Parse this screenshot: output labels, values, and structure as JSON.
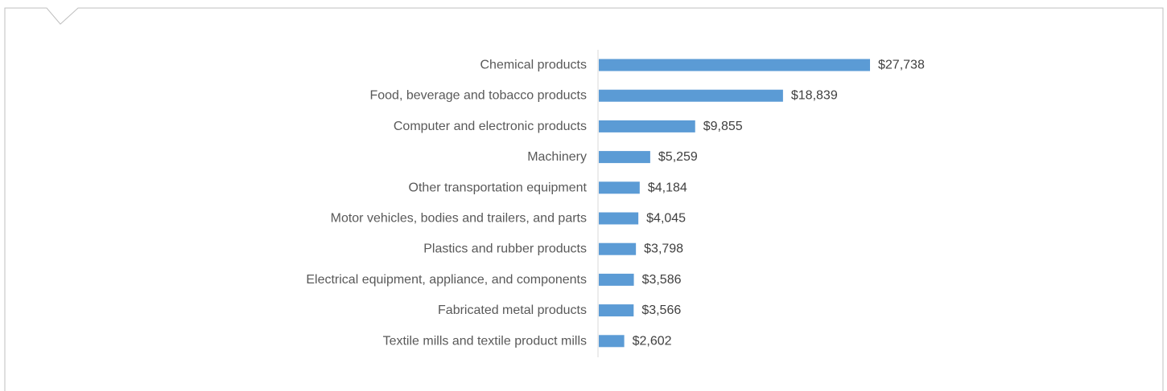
{
  "chart_data": {
    "type": "bar",
    "orientation": "horizontal",
    "categories": [
      "Chemical products",
      "Food, beverage and tobacco products",
      "Computer and electronic products",
      "Machinery",
      "Other transportation equipment",
      "Motor vehicles, bodies and trailers, and parts",
      "Plastics and rubber products",
      "Electrical equipment, appliance, and components",
      "Fabricated metal products",
      "Textile mills and textile product mills"
    ],
    "values": [
      27738,
      18839,
      9855,
      5259,
      4184,
      4045,
      3798,
      3586,
      3566,
      2602
    ],
    "data_labels": [
      "$27,738",
      "$18,839",
      "$9,855",
      "$5,259",
      "$4,184",
      "$4,045",
      "$3,798",
      "$3,586",
      "$3,566",
      "$2,602"
    ],
    "title": "",
    "xlabel": "",
    "ylabel": "",
    "xlim": [
      0,
      27738
    ],
    "grid": false,
    "legend": "none",
    "bar_color": "#5B9BD5"
  },
  "colors": {
    "frame": "#bfbfbf",
    "axis": "#d9d9d9",
    "category_text": "#595959",
    "value_text": "#404040"
  }
}
